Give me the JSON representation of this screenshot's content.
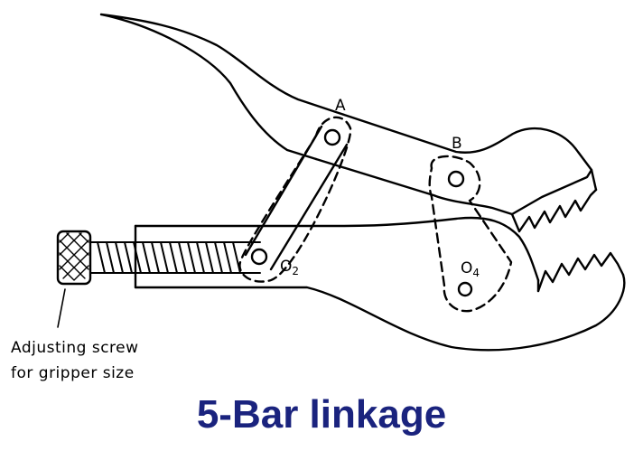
{
  "title": "5-Bar linkage",
  "labels": {
    "a": "A",
    "b": "B",
    "o2": "O",
    "o2_sub": "2",
    "o4": "O",
    "o4_sub": "4"
  },
  "caption": {
    "line1": "Adjusting screw",
    "line2": "for gripper size"
  },
  "colors": {
    "title": "#1a237e",
    "ink": "#000000",
    "background": "#ffffff"
  }
}
